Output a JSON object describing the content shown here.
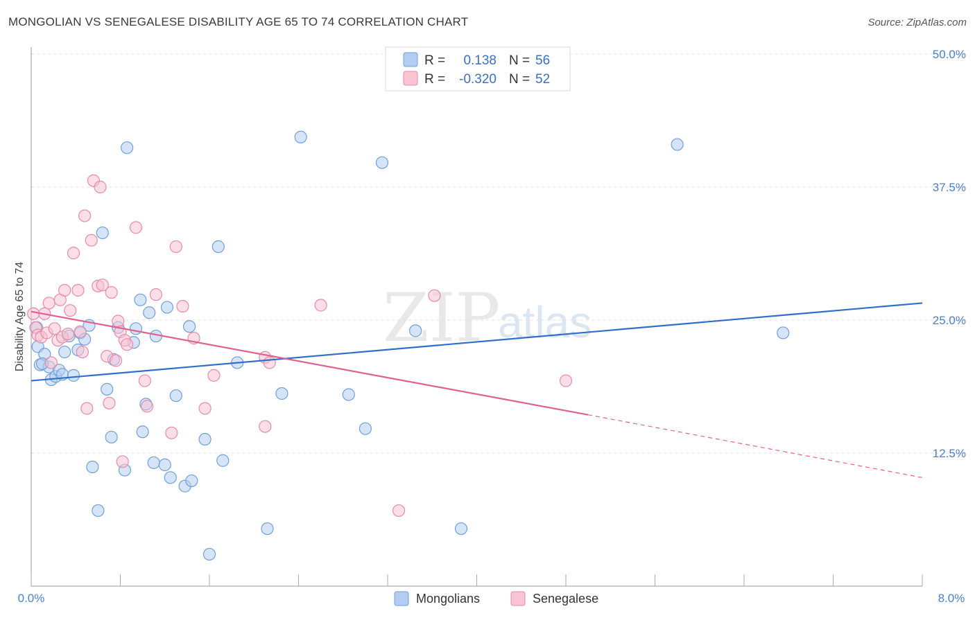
{
  "title": "MONGOLIAN VS SENEGALESE DISABILITY AGE 65 TO 74 CORRELATION CHART",
  "source": "Source: ZipAtlas.com",
  "watermark": {
    "zip": "ZIP",
    "atlas": "atlas"
  },
  "legend": {
    "r_label": "R =",
    "n_label": "N =",
    "entries": [
      {
        "r": "0.138",
        "n": "56"
      },
      {
        "r": "-0.320",
        "n": "52"
      }
    ]
  },
  "bottom_legend": [
    "Mongolians",
    "Senegalese"
  ],
  "colors": {
    "blue_fill": "#b3cdf0",
    "blue_stroke": "#6f9fdb",
    "blue_line": "#2f6fcb",
    "pink_fill": "#f8c3d3",
    "pink_stroke": "#e88aa8",
    "pink_line": "#e06090",
    "grid": "#dddddd",
    "tick_text": "#4a7ec9"
  },
  "chart_data": {
    "type": "scatter",
    "title": "MONGOLIAN VS SENEGALESE DISABILITY AGE 65 TO 74 CORRELATION CHART",
    "xlabel": "",
    "ylabel": "Disability Age 65 to 74",
    "xlim": [
      0,
      8
    ],
    "ylim": [
      0,
      50
    ],
    "x_tick_labels": [
      "0.0%",
      "8.0%"
    ],
    "y_ticks": [
      12.5,
      25.0,
      37.5,
      50.0
    ],
    "y_tick_labels": [
      "12.5%",
      "25.0%",
      "37.5%",
      "50.0%"
    ],
    "series": [
      {
        "name": "Mongolians",
        "r": 0.138,
        "n": 56,
        "trend": {
          "x": [
            0,
            8
          ],
          "y": [
            19.3,
            26.6
          ]
        },
        "points": [
          [
            0.05,
            24.3
          ],
          [
            0.06,
            22.5
          ],
          [
            0.08,
            20.8
          ],
          [
            0.12,
            21.8
          ],
          [
            0.16,
            20.6
          ],
          [
            0.18,
            19.4
          ],
          [
            0.22,
            19.7
          ],
          [
            0.25,
            20.3
          ],
          [
            0.28,
            19.9
          ],
          [
            0.34,
            23.5
          ],
          [
            0.38,
            19.8
          ],
          [
            0.42,
            22.2
          ],
          [
            0.44,
            23.8
          ],
          [
            0.48,
            23.2
          ],
          [
            0.52,
            24.5
          ],
          [
            0.55,
            11.2
          ],
          [
            0.6,
            7.1
          ],
          [
            0.64,
            33.2
          ],
          [
            0.68,
            18.5
          ],
          [
            0.72,
            14.0
          ],
          [
            0.74,
            21.3
          ],
          [
            0.78,
            24.3
          ],
          [
            0.84,
            10.9
          ],
          [
            0.86,
            41.2
          ],
          [
            0.92,
            22.9
          ],
          [
            0.94,
            24.2
          ],
          [
            0.98,
            26.9
          ],
          [
            1.0,
            14.5
          ],
          [
            1.03,
            17.1
          ],
          [
            1.06,
            25.7
          ],
          [
            1.1,
            11.6
          ],
          [
            1.12,
            23.5
          ],
          [
            1.2,
            11.4
          ],
          [
            1.22,
            26.2
          ],
          [
            1.25,
            10.2
          ],
          [
            1.3,
            17.9
          ],
          [
            1.38,
            9.4
          ],
          [
            1.42,
            24.4
          ],
          [
            1.44,
            9.9
          ],
          [
            1.56,
            13.8
          ],
          [
            1.6,
            3.0
          ],
          [
            1.68,
            31.9
          ],
          [
            1.72,
            11.8
          ],
          [
            1.85,
            21.0
          ],
          [
            2.12,
            5.4
          ],
          [
            2.25,
            18.1
          ],
          [
            2.42,
            42.2
          ],
          [
            2.85,
            18.0
          ],
          [
            3.0,
            14.8
          ],
          [
            3.15,
            39.8
          ],
          [
            3.45,
            24.0
          ],
          [
            3.86,
            5.4
          ],
          [
            5.8,
            41.5
          ],
          [
            6.75,
            23.8
          ],
          [
            0.3,
            22.0
          ],
          [
            0.1,
            20.9
          ]
        ]
      },
      {
        "name": "Senegalese",
        "r": -0.32,
        "n": 52,
        "trend": {
          "x": [
            0,
            5.0
          ],
          "y": [
            25.8,
            16.1
          ]
        },
        "trend_dashed": {
          "x": [
            5.0,
            8
          ],
          "y": [
            16.1,
            10.2
          ]
        },
        "points": [
          [
            0.02,
            25.6
          ],
          [
            0.04,
            24.3
          ],
          [
            0.06,
            23.6
          ],
          [
            0.09,
            23.4
          ],
          [
            0.12,
            25.6
          ],
          [
            0.14,
            23.8
          ],
          [
            0.16,
            26.6
          ],
          [
            0.18,
            21.0
          ],
          [
            0.21,
            24.2
          ],
          [
            0.24,
            23.1
          ],
          [
            0.26,
            26.9
          ],
          [
            0.28,
            23.4
          ],
          [
            0.3,
            27.8
          ],
          [
            0.33,
            23.7
          ],
          [
            0.35,
            25.9
          ],
          [
            0.38,
            31.3
          ],
          [
            0.42,
            27.8
          ],
          [
            0.44,
            23.9
          ],
          [
            0.46,
            22.0
          ],
          [
            0.48,
            34.8
          ],
          [
            0.5,
            16.7
          ],
          [
            0.54,
            32.5
          ],
          [
            0.56,
            38.1
          ],
          [
            0.6,
            28.2
          ],
          [
            0.62,
            37.5
          ],
          [
            0.64,
            28.3
          ],
          [
            0.68,
            21.6
          ],
          [
            0.7,
            17.2
          ],
          [
            0.72,
            27.6
          ],
          [
            0.76,
            21.2
          ],
          [
            0.78,
            24.9
          ],
          [
            0.8,
            23.9
          ],
          [
            0.82,
            11.7
          ],
          [
            0.84,
            23.1
          ],
          [
            0.86,
            22.7
          ],
          [
            0.94,
            33.7
          ],
          [
            1.02,
            19.3
          ],
          [
            1.04,
            16.9
          ],
          [
            1.12,
            27.4
          ],
          [
            1.26,
            14.4
          ],
          [
            1.3,
            31.9
          ],
          [
            1.36,
            26.3
          ],
          [
            1.46,
            23.3
          ],
          [
            1.56,
            16.7
          ],
          [
            1.64,
            19.8
          ],
          [
            2.1,
            21.5
          ],
          [
            2.14,
            21.0
          ],
          [
            2.1,
            15.0
          ],
          [
            2.6,
            26.4
          ],
          [
            3.3,
            7.1
          ],
          [
            3.62,
            27.3
          ],
          [
            4.8,
            19.3
          ]
        ]
      }
    ]
  }
}
